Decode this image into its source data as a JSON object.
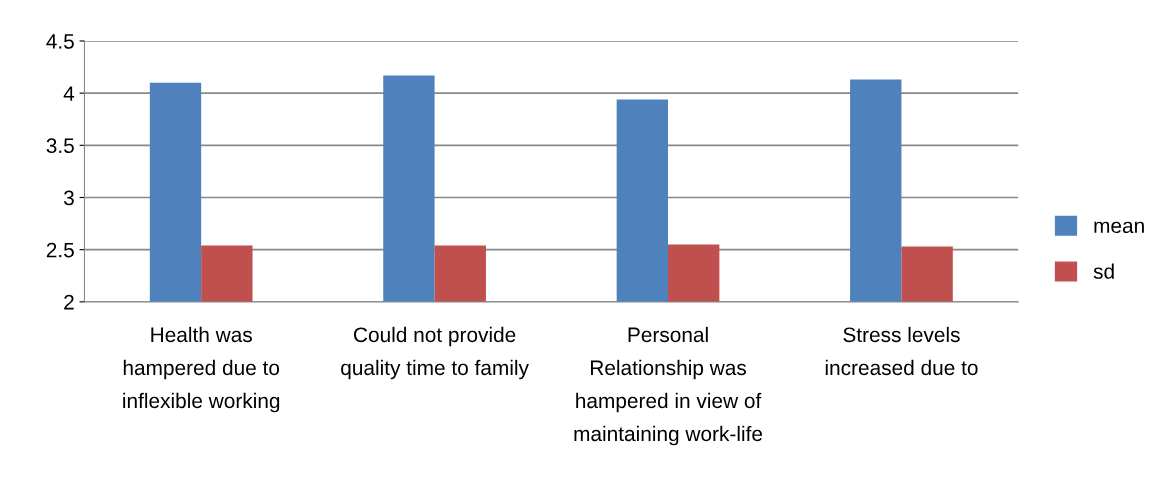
{
  "chart_data": {
    "type": "bar",
    "categories": [
      "Health was\nhampered due to\ninflexible working",
      "Could not provide\nquality time to family",
      "Personal\nRelationship was\nhampered in view of\nmaintaining work-life",
      "Stress levels\nincreased due to"
    ],
    "series": [
      {
        "name": "mean",
        "color": "#4f81bd",
        "values": [
          4.1,
          4.17,
          3.94,
          4.13
        ]
      },
      {
        "name": "sd",
        "color": "#c0504d",
        "values": [
          2.54,
          2.54,
          2.55,
          2.53
        ]
      }
    ],
    "ylim": [
      2,
      4.5
    ],
    "yticks": [
      2,
      2.5,
      3,
      3.5,
      4,
      4.5
    ],
    "grid": "y",
    "legend": "right"
  }
}
